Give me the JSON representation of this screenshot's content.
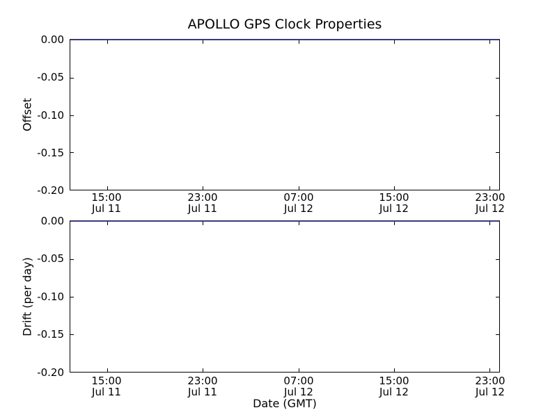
{
  "figure": {
    "title": "APOLLO GPS Clock Properties",
    "xlabel": "Date (GMT)",
    "background_color": "#ffffff",
    "spine_color": "#000000",
    "zero_line_color": "#3a3a7a"
  },
  "plots": [
    {
      "name": "offset",
      "ylabel": "Offset",
      "yticks": [
        "0.00",
        "-0.05",
        "-0.10",
        "-0.15",
        "-0.20"
      ],
      "xticks": [
        {
          "time": "15:00",
          "date": "Jul 11"
        },
        {
          "time": "23:00",
          "date": "Jul 11"
        },
        {
          "time": "07:00",
          "date": "Jul 12"
        },
        {
          "time": "15:00",
          "date": "Jul 12"
        },
        {
          "time": "23:00",
          "date": "Jul 12"
        }
      ]
    },
    {
      "name": "drift",
      "ylabel": "Drift (per day)",
      "yticks": [
        "0.00",
        "-0.05",
        "-0.10",
        "-0.15",
        "-0.20"
      ],
      "xticks": [
        {
          "time": "15:00",
          "date": "Jul 11"
        },
        {
          "time": "23:00",
          "date": "Jul 11"
        },
        {
          "time": "07:00",
          "date": "Jul 12"
        },
        {
          "time": "15:00",
          "date": "Jul 12"
        },
        {
          "time": "23:00",
          "date": "Jul 12"
        }
      ]
    }
  ],
  "chart_data": [
    {
      "type": "line",
      "title": "APOLLO GPS Clock Properties",
      "xlabel": "",
      "ylabel": "Offset",
      "x": [
        "Jul 11 15:00",
        "Jul 11 23:00",
        "Jul 12 07:00",
        "Jul 12 15:00",
        "Jul 12 23:00"
      ],
      "series": [
        {
          "name": "offset",
          "values": [
            0.0,
            0.0,
            0.0,
            0.0,
            0.0
          ],
          "color": "blue"
        }
      ],
      "ylim": [
        -0.2,
        0.0
      ],
      "yticks": [
        0.0,
        -0.05,
        -0.1,
        -0.15,
        -0.2
      ],
      "grid": false,
      "legend": "none"
    },
    {
      "type": "line",
      "title": "",
      "xlabel": "Date (GMT)",
      "ylabel": "Drift (per day)",
      "x": [
        "Jul 11 15:00",
        "Jul 11 23:00",
        "Jul 12 07:00",
        "Jul 12 15:00",
        "Jul 12 23:00"
      ],
      "series": [
        {
          "name": "drift",
          "values": [
            0.0,
            0.0,
            0.0,
            0.0,
            0.0
          ],
          "color": "blue"
        }
      ],
      "ylim": [
        -0.2,
        0.0
      ],
      "yticks": [
        0.0,
        -0.05,
        -0.1,
        -0.15,
        -0.2
      ],
      "grid": false,
      "legend": "none"
    }
  ]
}
